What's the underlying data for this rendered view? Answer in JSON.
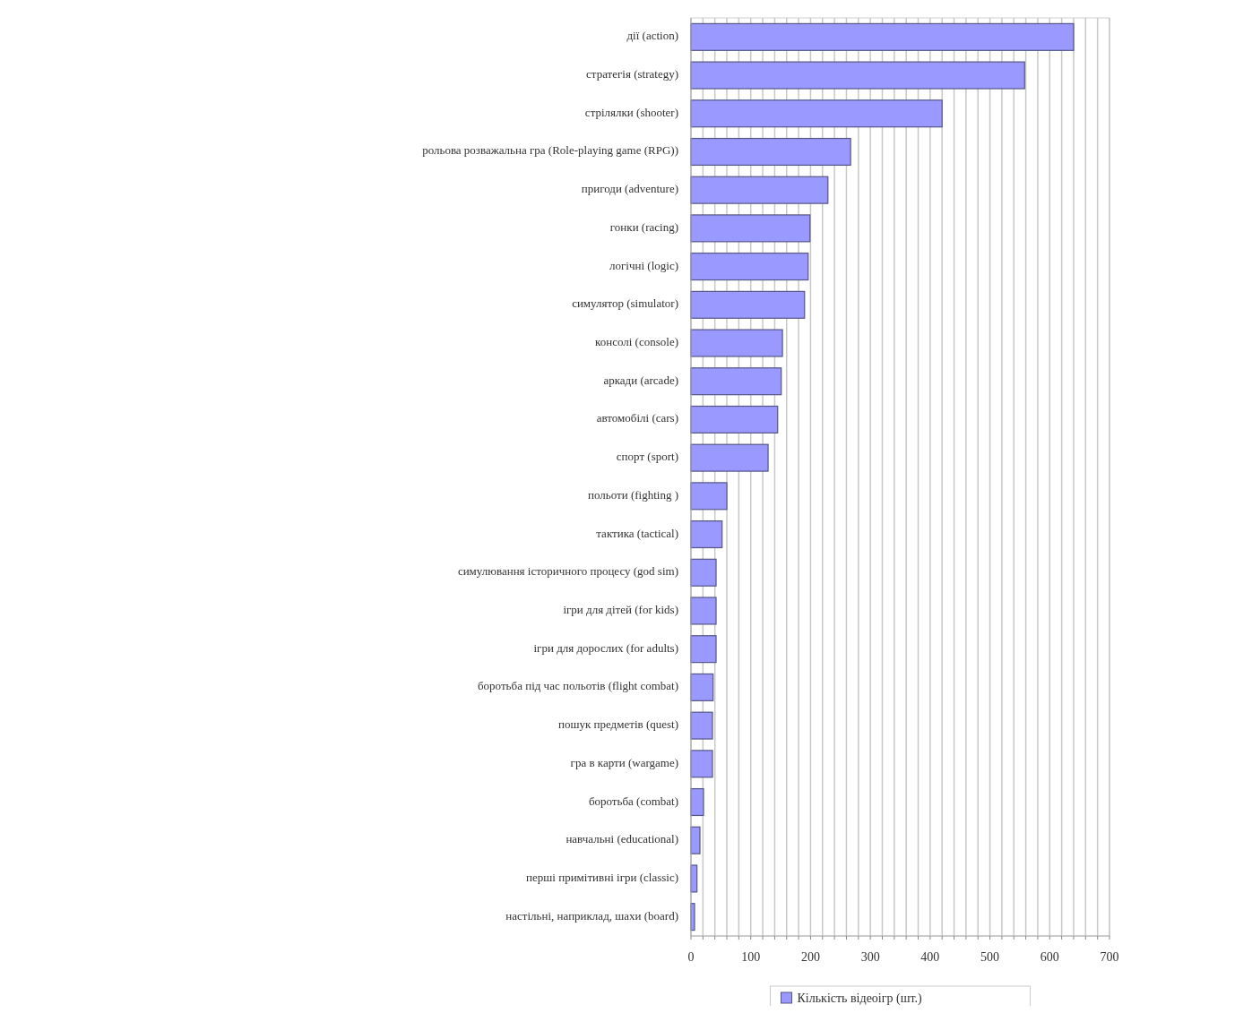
{
  "chart_data": {
    "type": "bar",
    "orientation": "horizontal",
    "categories": [
      "дії (action)",
      "стратегія (strategy)",
      "стрілялки (shooter)",
      "рольова розважальна гра (Role-playing game (RPG))",
      "пригоди (adventure)",
      "гонки (racing)",
      "логічні (logic)",
      "симулятор (simulator)",
      "консолі (console)",
      "аркади (arcade)",
      "автомобілі (cars)",
      "спорт (sport)",
      "польоти (fighting )",
      "тактика (tactical)",
      "симулювання історичного процесу (god sim)",
      "ігри для дітей (for kids)",
      "ігри для дорослих (for adults)",
      "боротьба під час польотів (flight combat)",
      "пошук предметів (quest)",
      "гра в карти (wargame)",
      "боротьба (combat)",
      "навчальні (educational)",
      "перші примітивні ігри (classic)",
      "настільні, наприклад, шахи (board)"
    ],
    "series": [
      {
        "name": "Кількість відеоігр (шт.)",
        "color": "#9999ff",
        "values": [
          640,
          558,
          420,
          267,
          229,
          199,
          196,
          190,
          153,
          151,
          145,
          129,
          60,
          52,
          42,
          42,
          42,
          37,
          36,
          36,
          21,
          15,
          10,
          6
        ]
      }
    ],
    "xlim": [
      0,
      700
    ],
    "xticks": [
      0,
      {
        "value": 20,
        "label": null
      },
      {
        "value": 40,
        "label": null
      },
      {
        "value": 60,
        "label": null
      },
      {
        "value": 80,
        "label": null
      },
      100,
      {
        "value": 120,
        "label": null
      },
      {
        "value": 140,
        "label": null
      },
      {
        "value": 160,
        "label": null
      },
      {
        "value": 180,
        "label": null
      },
      200,
      {
        "value": 220,
        "label": null
      },
      {
        "value": 240,
        "label": null
      },
      {
        "value": 260,
        "label": null
      },
      {
        "value": 280,
        "label": null
      },
      300,
      {
        "value": 320,
        "label": null
      },
      {
        "value": 340,
        "label": null
      },
      {
        "value": 360,
        "label": null
      },
      {
        "value": 380,
        "label": null
      },
      400,
      {
        "value": 420,
        "label": null
      },
      {
        "value": 440,
        "label": null
      },
      {
        "value": 460,
        "label": null
      },
      {
        "value": 480,
        "label": null
      },
      500,
      {
        "value": 520,
        "label": null
      },
      {
        "value": 540,
        "label": null
      },
      {
        "value": 560,
        "label": null
      },
      {
        "value": 580,
        "label": null
      },
      600,
      {
        "value": 620,
        "label": null
      },
      {
        "value": 640,
        "label": null
      },
      {
        "value": 660,
        "label": null
      },
      {
        "value": 680,
        "label": null
      },
      700
    ],
    "grid": "x",
    "legend": "bottom"
  }
}
